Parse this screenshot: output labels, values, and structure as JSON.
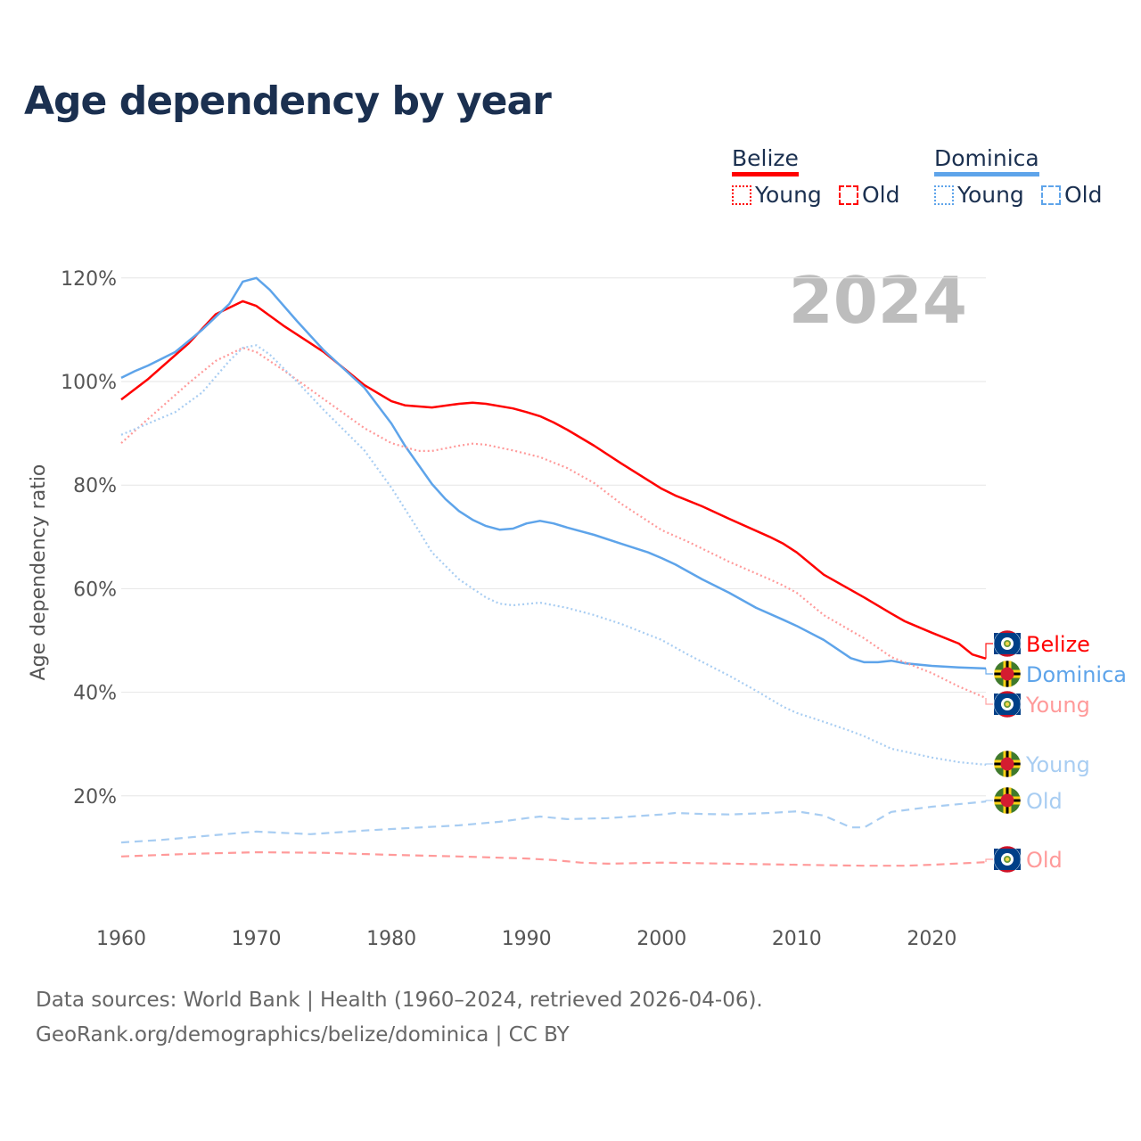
{
  "chart_data": {
    "type": "line",
    "title": "Age dependency by year",
    "ylabel": "Age dependency ratio",
    "xlabel": "",
    "xlim": [
      1960,
      2024
    ],
    "ylim": [
      0,
      125
    ],
    "xticks": [
      "1960",
      "1970",
      "1980",
      "1990",
      "2000",
      "2010",
      "2020"
    ],
    "yticks": [
      "20%",
      "40%",
      "60%",
      "80%",
      "100%",
      "120%"
    ],
    "ytick_values": [
      20,
      40,
      60,
      80,
      100,
      120
    ],
    "grid": true,
    "year_watermark": "2024",
    "legend": {
      "placement": "top-right",
      "groups": [
        {
          "country": "Belize",
          "items": [
            "Young",
            "Old"
          ],
          "color": "#ff0000"
        },
        {
          "country": "Dominica",
          "items": [
            "Young",
            "Old"
          ],
          "color": "#5ea4ea"
        }
      ]
    },
    "series": [
      {
        "name": "Belize",
        "label": "Belize",
        "country": "Belize",
        "kind": "total",
        "color": "#ff0000",
        "dash": "solid",
        "points": [
          [
            1960,
            96.5
          ],
          [
            1962,
            100.5
          ],
          [
            1965,
            107.4
          ],
          [
            1967,
            113
          ],
          [
            1969,
            115.5
          ],
          [
            1970,
            114.6
          ],
          [
            1972,
            110.8
          ],
          [
            1975,
            105.7
          ],
          [
            1978,
            99.3
          ],
          [
            1980,
            96.2
          ],
          [
            1981,
            95.4
          ],
          [
            1983,
            95
          ],
          [
            1985,
            95.7
          ],
          [
            1986,
            95.9
          ],
          [
            1987,
            95.7
          ],
          [
            1989,
            94.8
          ],
          [
            1990,
            94.1
          ],
          [
            1991,
            93.3
          ],
          [
            1992,
            92.1
          ],
          [
            1993,
            90.7
          ],
          [
            1995,
            87.6
          ],
          [
            1997,
            84.2
          ],
          [
            2000,
            79.3
          ],
          [
            2001,
            78
          ],
          [
            2003,
            75.9
          ],
          [
            2005,
            73.5
          ],
          [
            2008,
            70
          ],
          [
            2009,
            68.7
          ],
          [
            2010,
            67
          ],
          [
            2012,
            62.7
          ],
          [
            2015,
            58.3
          ],
          [
            2017,
            55.2
          ],
          [
            2018,
            53.7
          ],
          [
            2020,
            51.5
          ],
          [
            2022,
            49.4
          ],
          [
            2023,
            47.3
          ],
          [
            2024,
            46.5
          ]
        ]
      },
      {
        "name": "Dominica",
        "label": "Dominica",
        "country": "Dominica",
        "kind": "total",
        "color": "#5ea4ea",
        "dash": "solid",
        "points": [
          [
            1960,
            100.7
          ],
          [
            1961,
            102
          ],
          [
            1962,
            103.1
          ],
          [
            1964,
            105.7
          ],
          [
            1966,
            110
          ],
          [
            1968,
            115
          ],
          [
            1969,
            119.3
          ],
          [
            1970,
            120
          ],
          [
            1971,
            117.7
          ],
          [
            1973,
            111.7
          ],
          [
            1975,
            106
          ],
          [
            1978,
            98.8
          ],
          [
            1980,
            91.9
          ],
          [
            1981,
            87.6
          ],
          [
            1983,
            80.2
          ],
          [
            1984,
            77.3
          ],
          [
            1985,
            75
          ],
          [
            1986,
            73.3
          ],
          [
            1987,
            72.1
          ],
          [
            1988,
            71.4
          ],
          [
            1989,
            71.6
          ],
          [
            1990,
            72.6
          ],
          [
            1991,
            73.1
          ],
          [
            1992,
            72.6
          ],
          [
            1993,
            71.8
          ],
          [
            1995,
            70.4
          ],
          [
            1997,
            68.7
          ],
          [
            1999,
            67
          ],
          [
            2000,
            65.9
          ],
          [
            2001,
            64.7
          ],
          [
            2003,
            61.8
          ],
          [
            2005,
            59.2
          ],
          [
            2007,
            56.3
          ],
          [
            2009,
            54
          ],
          [
            2010,
            52.8
          ],
          [
            2012,
            50.1
          ],
          [
            2014,
            46.6
          ],
          [
            2015,
            45.8
          ],
          [
            2016,
            45.8
          ],
          [
            2017,
            46.1
          ],
          [
            2018,
            45.6
          ],
          [
            2020,
            45.1
          ],
          [
            2022,
            44.8
          ],
          [
            2024,
            44.6
          ]
        ]
      },
      {
        "name": "Belize Young",
        "label": "Young",
        "country": "Belize",
        "kind": "young",
        "color": "#ff9a9a",
        "dash": "dotted",
        "points": [
          [
            1960,
            88.1
          ],
          [
            1962,
            92.8
          ],
          [
            1965,
            99.7
          ],
          [
            1967,
            104
          ],
          [
            1969,
            106.5
          ],
          [
            1970,
            105.7
          ],
          [
            1972,
            102.2
          ],
          [
            1975,
            96.6
          ],
          [
            1978,
            91
          ],
          [
            1980,
            88.1
          ],
          [
            1982,
            86.6
          ],
          [
            1983,
            86.6
          ],
          [
            1985,
            87.6
          ],
          [
            1986,
            88
          ],
          [
            1987,
            87.8
          ],
          [
            1989,
            86.7
          ],
          [
            1991,
            85.4
          ],
          [
            1993,
            83.3
          ],
          [
            1995,
            80.4
          ],
          [
            1997,
            76.4
          ],
          [
            2000,
            71.3
          ],
          [
            2002,
            69
          ],
          [
            2005,
            65.2
          ],
          [
            2008,
            61.8
          ],
          [
            2009,
            60.6
          ],
          [
            2010,
            59.2
          ],
          [
            2012,
            54.9
          ],
          [
            2015,
            50.4
          ],
          [
            2017,
            46.8
          ],
          [
            2020,
            43.7
          ],
          [
            2022,
            41.1
          ],
          [
            2024,
            38.9
          ]
        ]
      },
      {
        "name": "Dominica Young",
        "label": "Young",
        "country": "Dominica",
        "kind": "young",
        "color": "#a8cdf2",
        "dash": "dotted",
        "points": [
          [
            1960,
            89.7
          ],
          [
            1962,
            91.9
          ],
          [
            1964,
            94.1
          ],
          [
            1966,
            97.9
          ],
          [
            1968,
            104
          ],
          [
            1969,
            106.5
          ],
          [
            1970,
            107
          ],
          [
            1971,
            105.2
          ],
          [
            1973,
            100
          ],
          [
            1975,
            94.5
          ],
          [
            1978,
            86.7
          ],
          [
            1980,
            79.5
          ],
          [
            1982,
            71.3
          ],
          [
            1983,
            67
          ],
          [
            1985,
            61.8
          ],
          [
            1987,
            58.3
          ],
          [
            1988,
            57.1
          ],
          [
            1989,
            56.8
          ],
          [
            1991,
            57.3
          ],
          [
            1993,
            56.3
          ],
          [
            1995,
            54.9
          ],
          [
            1997,
            53.2
          ],
          [
            2000,
            50.1
          ],
          [
            2002,
            47.2
          ],
          [
            2005,
            43.2
          ],
          [
            2007,
            40.3
          ],
          [
            2009,
            37.2
          ],
          [
            2010,
            36
          ],
          [
            2012,
            34.3
          ],
          [
            2014,
            32.5
          ],
          [
            2015,
            31.5
          ],
          [
            2017,
            29.1
          ],
          [
            2020,
            27.4
          ],
          [
            2022,
            26.5
          ],
          [
            2024,
            26
          ]
        ]
      },
      {
        "name": "Dominica Old",
        "label": "Old",
        "country": "Dominica",
        "kind": "old",
        "color": "#a8cdf2",
        "dash": "dashed",
        "points": [
          [
            1960,
            11
          ],
          [
            1963,
            11.5
          ],
          [
            1966,
            12.2
          ],
          [
            1969,
            12.9
          ],
          [
            1970,
            13.1
          ],
          [
            1974,
            12.6
          ],
          [
            1978,
            13.3
          ],
          [
            1980,
            13.6
          ],
          [
            1985,
            14.3
          ],
          [
            1988,
            15
          ],
          [
            1990,
            15.7
          ],
          [
            1991,
            16
          ],
          [
            1993,
            15.5
          ],
          [
            1996,
            15.7
          ],
          [
            2000,
            16.4
          ],
          [
            2001,
            16.7
          ],
          [
            2003,
            16.5
          ],
          [
            2005,
            16.4
          ],
          [
            2008,
            16.7
          ],
          [
            2010,
            17
          ],
          [
            2012,
            16.2
          ],
          [
            2014,
            13.9
          ],
          [
            2015,
            13.9
          ],
          [
            2017,
            16.9
          ],
          [
            2020,
            17.9
          ],
          [
            2024,
            18.9
          ]
        ]
      },
      {
        "name": "Belize Old",
        "label": "Old",
        "country": "Belize",
        "kind": "old",
        "color": "#ff9a9a",
        "dash": "dashed",
        "points": [
          [
            1960,
            8.3
          ],
          [
            1965,
            8.8
          ],
          [
            1970,
            9.1
          ],
          [
            1975,
            9
          ],
          [
            1980,
            8.6
          ],
          [
            1985,
            8.3
          ],
          [
            1990,
            7.9
          ],
          [
            1992,
            7.6
          ],
          [
            1994,
            7.1
          ],
          [
            1996,
            6.9
          ],
          [
            2000,
            7.1
          ],
          [
            2005,
            6.9
          ],
          [
            2010,
            6.7
          ],
          [
            2015,
            6.5
          ],
          [
            2018,
            6.5
          ],
          [
            2020,
            6.7
          ],
          [
            2024,
            7.2
          ]
        ]
      }
    ]
  },
  "footer": {
    "line1": "Data sources: World Bank | Health (1960–2024, retrieved 2026-04-06).",
    "line2": "GeoRank.org/demographics/belize/dominica | CC BY"
  }
}
